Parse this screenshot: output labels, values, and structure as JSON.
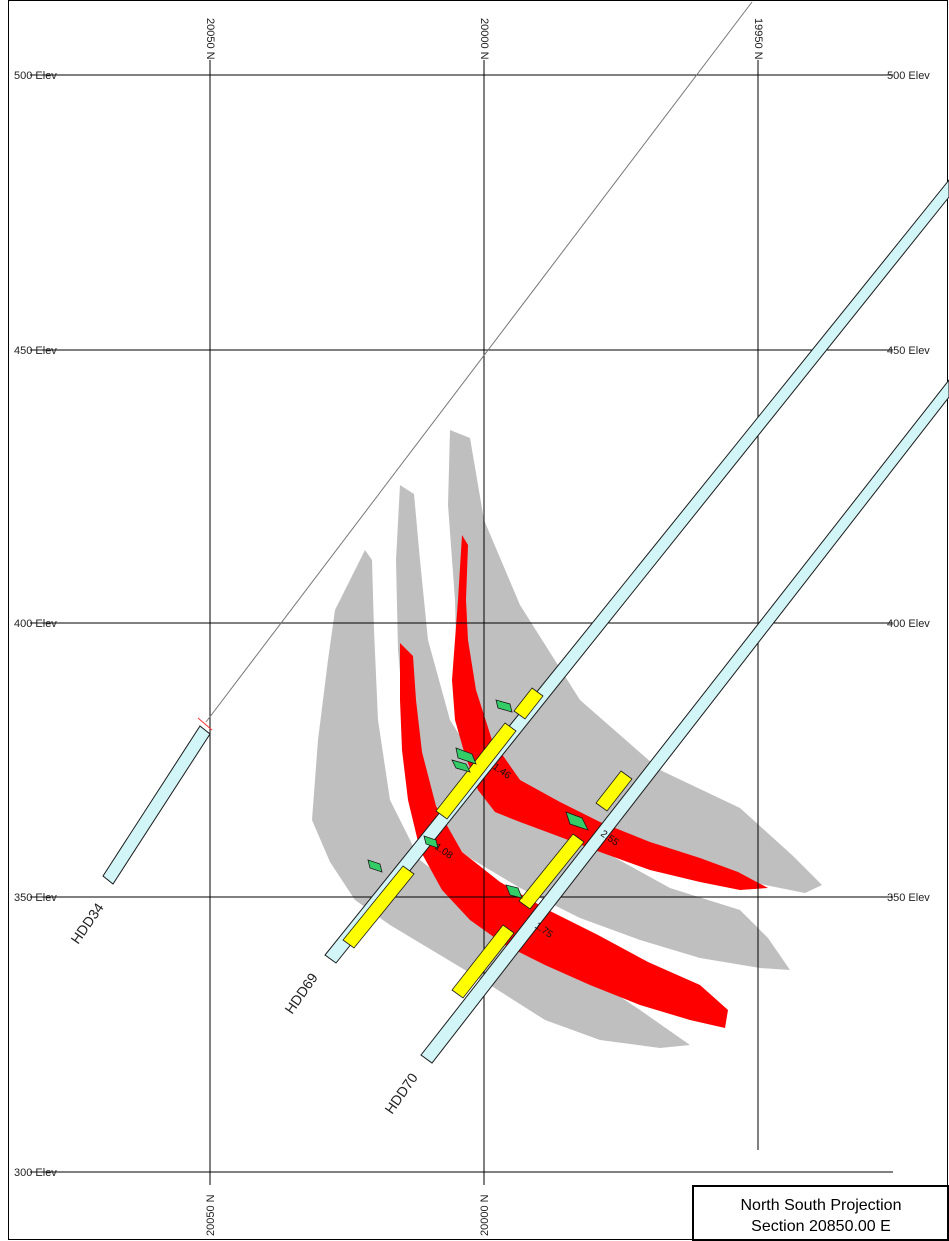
{
  "section_title": {
    "line1": "North South Projection",
    "line2": "Section 20850.00 E"
  },
  "grid": {
    "elevation_labels": [
      {
        "value": 500,
        "text": "500 Elev"
      },
      {
        "value": 450,
        "text": "450 Elev"
      },
      {
        "value": 400,
        "text": "400 Elev"
      },
      {
        "value": 350,
        "text": "350 Elev"
      },
      {
        "value": 300,
        "text": "300 Elev"
      }
    ],
    "northing_labels": [
      {
        "value": 20050,
        "text": "20050 N"
      },
      {
        "value": 20000,
        "text": "20000 N"
      },
      {
        "value": 19950,
        "text": "19950 N"
      }
    ]
  },
  "drill_holes": [
    {
      "id": "HDD34",
      "label": "HDD34"
    },
    {
      "id": "HDD69",
      "label": "HDD69"
    },
    {
      "id": "HDD70",
      "label": "HDD70"
    }
  ],
  "intercepts": [
    {
      "hole": "HDD69",
      "text": "1.46"
    },
    {
      "hole": "HDD69",
      "text": "1.08"
    },
    {
      "hole": "HDD70",
      "text": "2.55"
    },
    {
      "hole": "HDD70",
      "text": "1.75"
    }
  ],
  "colors": {
    "background": "#ffffff",
    "grid_line": "#000000",
    "hole_fill": "#d2f5f7",
    "hole_outline": "#1a1a1a",
    "high_grade_zone": "#ff0000",
    "low_grade_zone": "#bfbfbf",
    "assay_yellow": "#ffff00",
    "assay_green": "#33cc66",
    "topography_line": "#777777"
  }
}
